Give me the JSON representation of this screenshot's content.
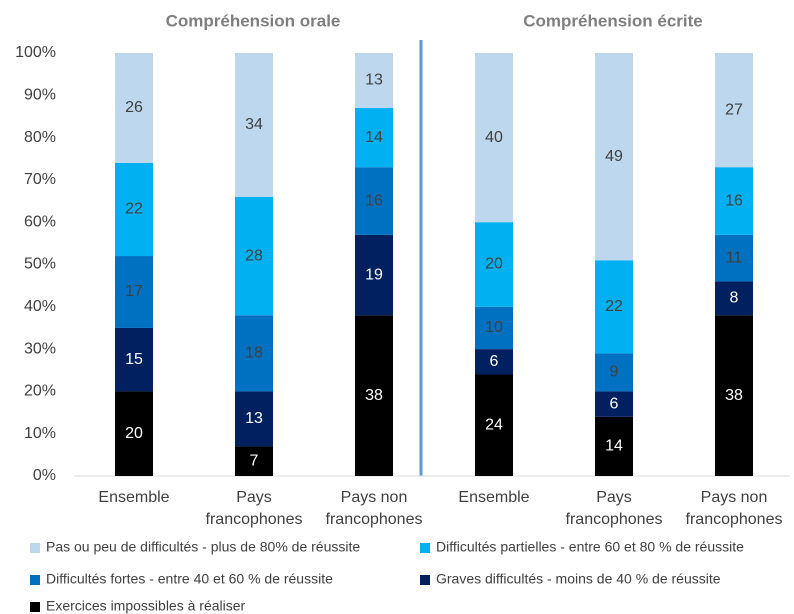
{
  "chart_data": {
    "type": "stacked_bar",
    "group_titles": [
      "Compréhension orale",
      "Compréhension écrite"
    ],
    "categories": [
      "Ensemble",
      "Pays francophones",
      "Pays non francophones",
      "Ensemble",
      "Pays francophones",
      "Pays non francophones"
    ],
    "series": [
      {
        "name": "Pas ou peu de difficultés - plus de 80% de réussite",
        "color": "#bdd7ee",
        "label_color": "#404040",
        "values": [
          26,
          34,
          13,
          40,
          49,
          27
        ]
      },
      {
        "name": "Difficultés partielles - entre 60 et 80 % de réussite",
        "color": "#00b0f0",
        "label_color": "#404040",
        "values": [
          22,
          28,
          14,
          20,
          22,
          16
        ]
      },
      {
        "name": "Difficultés fortes - entre 40 et 60 % de réussite",
        "color": "#0070c0",
        "label_color": "#404040",
        "values": [
          17,
          18,
          16,
          10,
          9,
          11
        ]
      },
      {
        "name": "Graves difficultés - moins de 40 % de réussite",
        "color": "#002060",
        "label_color": "#ffffff",
        "values": [
          15,
          13,
          19,
          6,
          6,
          8
        ]
      },
      {
        "name": "Exercices impossibles à réaliser",
        "color": "#000000",
        "label_color": "#ffffff",
        "values": [
          20,
          7,
          38,
          24,
          14,
          38
        ]
      }
    ],
    "ylim": [
      0,
      100
    ],
    "yticks": [
      {
        "value": 0,
        "label": "0%"
      },
      {
        "value": 10,
        "label": "10%"
      },
      {
        "value": 20,
        "label": "20%"
      },
      {
        "value": 30,
        "label": "30%"
      },
      {
        "value": 40,
        "label": "40%"
      },
      {
        "value": 50,
        "label": "50%"
      },
      {
        "value": 60,
        "label": "60%"
      },
      {
        "value": 70,
        "label": "70%"
      },
      {
        "value": 80,
        "label": "80%"
      },
      {
        "value": 90,
        "label": "90%"
      },
      {
        "value": 100,
        "label": "100%"
      }
    ],
    "grid": false,
    "legend": "bottom"
  }
}
